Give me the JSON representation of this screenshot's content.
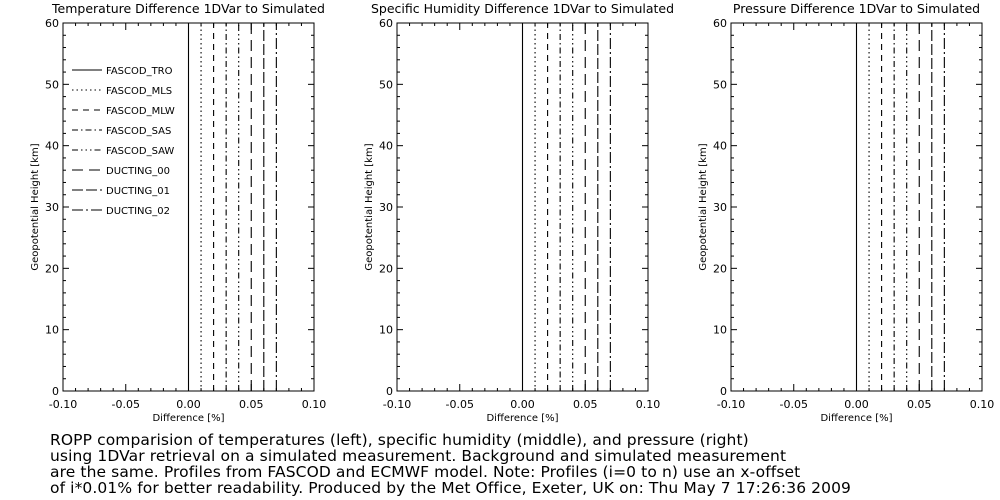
{
  "chart_data": [
    {
      "type": "line",
      "title": "Temperature Difference 1DVar to Simulated",
      "xlabel": "Difference [%]",
      "ylabel": "Geopotential Height [km]",
      "xlim": [
        -0.1,
        0.1
      ],
      "ylim": [
        0,
        60
      ],
      "xticks": [
        "-0.10",
        "-0.05",
        "0.00",
        "0.05",
        "0.10"
      ],
      "yticks": [
        "0",
        "10",
        "20",
        "30",
        "40",
        "50",
        "60"
      ],
      "legend_position": "top-left",
      "series": [
        {
          "name": "FASCOD_TRO",
          "x": [
            0.0,
            0.0
          ],
          "y": [
            0,
            60
          ]
        },
        {
          "name": "FASCOD_MLS",
          "x": [
            0.01,
            0.01
          ],
          "y": [
            0,
            60
          ]
        },
        {
          "name": "FASCOD_MLW",
          "x": [
            0.02,
            0.02
          ],
          "y": [
            0,
            60
          ]
        },
        {
          "name": "FASCOD_SAS",
          "x": [
            0.03,
            0.03
          ],
          "y": [
            0,
            60
          ]
        },
        {
          "name": "FASCOD_SAW",
          "x": [
            0.04,
            0.04
          ],
          "y": [
            0,
            60
          ]
        },
        {
          "name": "DUCTING_00",
          "x": [
            0.05,
            0.05
          ],
          "y": [
            0,
            60
          ]
        },
        {
          "name": "DUCTING_01",
          "x": [
            0.06,
            0.06
          ],
          "y": [
            0,
            60
          ]
        },
        {
          "name": "DUCTING_02",
          "x": [
            0.07,
            0.07
          ],
          "y": [
            0,
            60
          ]
        }
      ]
    },
    {
      "type": "line",
      "title": "Specific Humidity Difference 1DVar to Simulated",
      "xlabel": "Difference [%]",
      "ylabel": "Geopotential Height [km]",
      "xlim": [
        -0.1,
        0.1
      ],
      "ylim": [
        0,
        60
      ],
      "xticks": [
        "-0.10",
        "-0.05",
        "0.00",
        "0.05",
        "0.10"
      ],
      "yticks": [
        "0",
        "10",
        "20",
        "30",
        "40",
        "50",
        "60"
      ],
      "series": [
        {
          "x": [
            0.0,
            0.0
          ],
          "y": [
            0,
            60
          ]
        },
        {
          "x": [
            0.01,
            0.01
          ],
          "y": [
            0,
            60
          ]
        },
        {
          "x": [
            0.02,
            0.02
          ],
          "y": [
            0,
            60
          ]
        },
        {
          "x": [
            0.03,
            0.03
          ],
          "y": [
            0,
            60
          ]
        },
        {
          "x": [
            0.04,
            0.04
          ],
          "y": [
            0,
            60
          ]
        },
        {
          "x": [
            0.05,
            0.05
          ],
          "y": [
            0,
            60
          ]
        },
        {
          "x": [
            0.06,
            0.06
          ],
          "y": [
            0,
            60
          ]
        },
        {
          "x": [
            0.07,
            0.07
          ],
          "y": [
            0,
            60
          ]
        }
      ]
    },
    {
      "type": "line",
      "title": "Pressure Difference 1DVar to Simulated",
      "xlabel": "Difference [%]",
      "ylabel": "Geopotential Height [km]",
      "xlim": [
        -0.1,
        0.1
      ],
      "ylim": [
        0,
        60
      ],
      "xticks": [
        "-0.10",
        "-0.05",
        "0.00",
        "0.05",
        "0.10"
      ],
      "yticks": [
        "0",
        "10",
        "20",
        "30",
        "40",
        "50",
        "60"
      ],
      "series": [
        {
          "x": [
            0.0,
            0.0
          ],
          "y": [
            0,
            60
          ]
        },
        {
          "x": [
            0.01,
            0.01
          ],
          "y": [
            0,
            60
          ]
        },
        {
          "x": [
            0.02,
            0.02
          ],
          "y": [
            0,
            60
          ]
        },
        {
          "x": [
            0.03,
            0.03
          ],
          "y": [
            0,
            60
          ]
        },
        {
          "x": [
            0.04,
            0.04
          ],
          "y": [
            0,
            60
          ]
        },
        {
          "x": [
            0.05,
            0.05
          ],
          "y": [
            0,
            60
          ]
        },
        {
          "x": [
            0.06,
            0.06
          ],
          "y": [
            0,
            60
          ]
        },
        {
          "x": [
            0.07,
            0.07
          ],
          "y": [
            0,
            60
          ]
        }
      ]
    }
  ],
  "caption": {
    "lines": [
      "ROPP comparision of temperatures (left), specific humidity (middle), and pressure (right)",
      "using 1DVar retrieval on a simulated measurement. Background and simulated measurement",
      "are the same. Profiles from FASCOD and ECMWF model. Note: Profiles (i=0 to n) use an x-offset",
      "of i*0.01% for better readability. Produced by the Met Office, Exeter, UK on: Thu May  7 17:26:36 2009"
    ]
  }
}
